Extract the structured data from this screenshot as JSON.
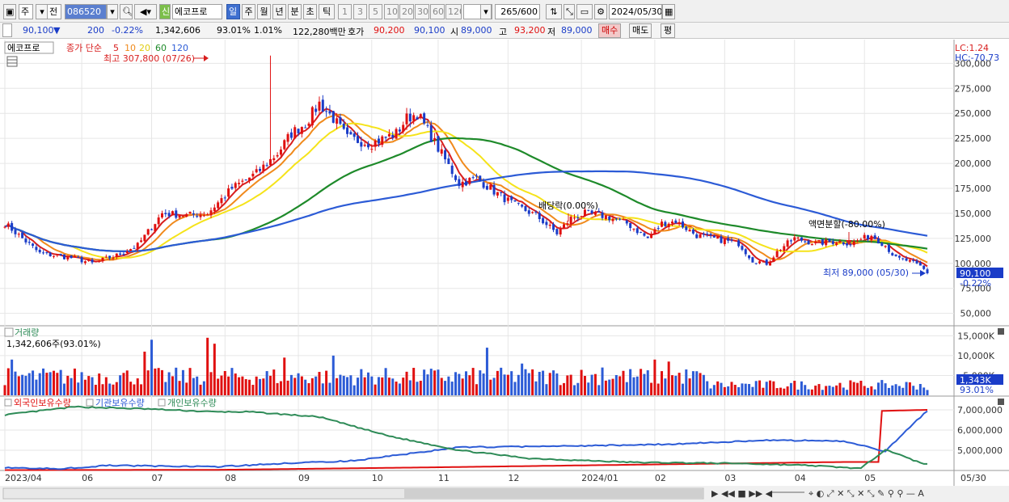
{
  "toolbar": {
    "period_mode": "주",
    "prev_label": "전",
    "code": "086520",
    "badge": "신",
    "stock_name": "에코프로",
    "tabs": [
      "일",
      "주",
      "월",
      "년",
      "분",
      "초",
      "틱"
    ],
    "minute_options": [
      "1",
      "3",
      "5",
      "10",
      "20",
      "30",
      "60",
      "120"
    ],
    "count_display": "265/600",
    "date": "2024/05/30"
  },
  "quote": {
    "price": "90,100",
    "arrow": "▼",
    "change": "200",
    "change_pct": "-0.22%",
    "volume": "1,342,606",
    "turnover_pct": "93.01%",
    "ratio": "1.01%",
    "amount": "122,280백만",
    "bid_label": "호가",
    "bid": "90,200",
    "ask": "90,100",
    "open_label": "시",
    "open": "89,000",
    "high_label": "고",
    "high": "93,200",
    "low_label": "저",
    "low": "89,000",
    "buy_label": "매수",
    "sell_label": "매도",
    "avg_label": "평"
  },
  "price_panel": {
    "stock_tag": "에코프로",
    "ma_prefix": "종가 단순",
    "ma_periods": [
      "5",
      "10",
      "20",
      "60",
      "120"
    ],
    "ma_colors": [
      "#d81e1e",
      "#f08a1c",
      "#f5e31a",
      "#1e8a2a",
      "#2c5bd6"
    ],
    "high_note": "최고 307,800 (07/26)",
    "low_note": "최저 89,000 (05/30)",
    "dividend_note": "배당락(0.00%)",
    "split_note": "액면분할(-80.00%)",
    "lc": "LC:1.24",
    "hc": "HC:-70.73",
    "last_price_tag": "90,100",
    "last_change_tag": "-0.22%"
  },
  "volume_panel": {
    "title": "거래량",
    "value": "1,342,606주(93.01%)",
    "last_tag": "1,343K",
    "pct_tag": "93.01%"
  },
  "holding_panel": {
    "titles": [
      "외국인보유수량",
      "기관보유수량",
      "개인보유수량"
    ],
    "colors": [
      "#e01010",
      "#2c5bd6",
      "#2e8b57"
    ]
  },
  "chart_data": [
    {
      "type": "candlestick",
      "title": "에코프로",
      "ylim": [
        40000,
        310000
      ],
      "yticks": [
        50000,
        75000,
        100000,
        125000,
        150000,
        175000,
        200000,
        225000,
        250000,
        275000,
        300000
      ],
      "ytick_labels": [
        "50,000",
        "75,000",
        "100,000",
        "125,000",
        "150,000",
        "175,000",
        "200,000",
        "225,000",
        "250,000",
        "275,000",
        "300,000"
      ],
      "x_labels": [
        "2023/04",
        "06",
        "07",
        "08",
        "09",
        "10",
        "11",
        "12",
        "2024/01",
        "02",
        "03",
        "04",
        "05",
        "05/30"
      ],
      "close_anchors": [
        [
          0,
          140000
        ],
        [
          10,
          110000
        ],
        [
          20,
          105000
        ],
        [
          25,
          100000
        ],
        [
          32,
          108000
        ],
        [
          38,
          118000
        ],
        [
          45,
          150000
        ],
        [
          52,
          148000
        ],
        [
          58,
          150000
        ],
        [
          65,
          175000
        ],
        [
          72,
          190000
        ],
        [
          78,
          210000
        ],
        [
          82,
          230000
        ],
        [
          86,
          240000
        ],
        [
          90,
          260000
        ],
        [
          94,
          245000
        ],
        [
          98,
          225000
        ],
        [
          105,
          220000
        ],
        [
          112,
          230000
        ],
        [
          115,
          245000
        ],
        [
          118,
          250000
        ],
        [
          124,
          215000
        ],
        [
          130,
          180000
        ],
        [
          135,
          185000
        ],
        [
          140,
          172000
        ],
        [
          146,
          158000
        ],
        [
          152,
          148000
        ],
        [
          158,
          130000
        ],
        [
          162,
          145000
        ],
        [
          166,
          150000
        ],
        [
          172,
          147000
        ],
        [
          178,
          140000
        ],
        [
          184,
          125000
        ],
        [
          188,
          140000
        ],
        [
          192,
          142000
        ],
        [
          198,
          128000
        ],
        [
          204,
          124000
        ],
        [
          210,
          120000
        ],
        [
          214,
          103000
        ],
        [
          218,
          100000
        ],
        [
          222,
          115000
        ],
        [
          226,
          125000
        ],
        [
          232,
          120000
        ],
        [
          238,
          122000
        ],
        [
          242,
          120000
        ],
        [
          248,
          128000
        ],
        [
          252,
          118000
        ],
        [
          255,
          105000
        ],
        [
          258,
          103000
        ],
        [
          262,
          97000
        ],
        [
          264,
          91000
        ]
      ],
      "high": 307800,
      "high_date": "07/26",
      "low": 89000,
      "low_date": "05/30",
      "last_close": 90100
    },
    {
      "type": "bar",
      "title": "거래량",
      "yticks": [
        5000,
        10000,
        15000
      ],
      "ytick_labels": [
        "5,000K",
        "10,000K",
        "15,000K"
      ],
      "ylim": [
        0,
        16500
      ],
      "last_value_k": 1343
    },
    {
      "type": "line",
      "title": "보유수량",
      "yticks": [
        5000000,
        6000000,
        7000000
      ],
      "ytick_labels": [
        "5,000,000",
        "6,000,000",
        "7,000,000"
      ],
      "ylim": [
        4000000,
        7400000
      ],
      "series": [
        {
          "name": "외국인보유수량",
          "anchors": [
            [
              0,
              4020000
            ],
            [
              60,
              4030000
            ],
            [
              120,
              4150000
            ],
            [
              240,
              4420000
            ],
            [
              250,
              4420000
            ],
            [
              251,
              6950000
            ],
            [
              264,
              7000000
            ]
          ]
        },
        {
          "name": "기관보유수량",
          "anchors": [
            [
              0,
              4150000
            ],
            [
              15,
              4080000
            ],
            [
              30,
              4250000
            ],
            [
              60,
              4180000
            ],
            [
              80,
              4350000
            ],
            [
              100,
              4480000
            ],
            [
              130,
              5150000
            ],
            [
              160,
              5200000
            ],
            [
              190,
              5300000
            ],
            [
              220,
              5500000
            ],
            [
              240,
              5450000
            ],
            [
              252,
              4950000
            ],
            [
              258,
              6000000
            ],
            [
              264,
              6950000
            ]
          ]
        },
        {
          "name": "개인보유수량",
          "anchors": [
            [
              0,
              6750000
            ],
            [
              20,
              7150000
            ],
            [
              40,
              7050000
            ],
            [
              60,
              6900000
            ],
            [
              70,
              6900000
            ],
            [
              90,
              6650000
            ],
            [
              110,
              5700000
            ],
            [
              130,
              5000000
            ],
            [
              150,
              4600000
            ],
            [
              180,
              4400000
            ],
            [
              210,
              4350000
            ],
            [
              230,
              4250000
            ],
            [
              245,
              4100000
            ],
            [
              252,
              5050000
            ],
            [
              260,
              4500000
            ],
            [
              264,
              4300000
            ]
          ]
        }
      ]
    }
  ]
}
